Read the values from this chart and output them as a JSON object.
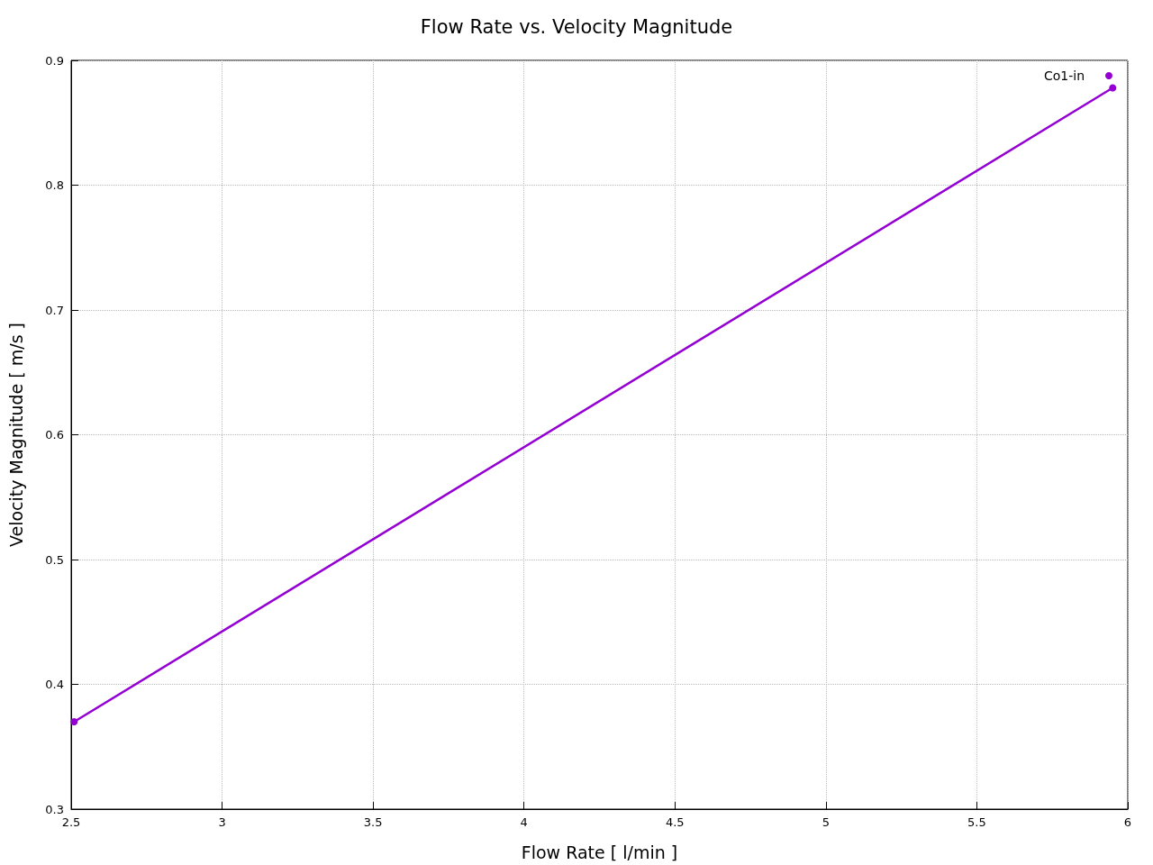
{
  "chart_data": {
    "type": "line",
    "title": "Flow Rate vs. Velocity Magnitude",
    "xlabel": "Flow Rate [ l/min ]",
    "ylabel": "Velocity Magnitude [ m/s ]",
    "x": [
      2.51,
      5.95
    ],
    "series": [
      {
        "name": "Co1-in",
        "color": "#9400d3",
        "values": [
          0.37,
          0.878
        ]
      }
    ],
    "xlim": [
      2.5,
      6
    ],
    "xticks": [
      2.5,
      3,
      3.5,
      4,
      4.5,
      5,
      5.5,
      6
    ],
    "ylim": [
      0.3,
      0.9
    ],
    "yticks": [
      0.3,
      0.4,
      0.5,
      0.6,
      0.7,
      0.8,
      0.9
    ],
    "grid": true,
    "legend": "top right",
    "marker": "circle",
    "line_style": "solid"
  }
}
